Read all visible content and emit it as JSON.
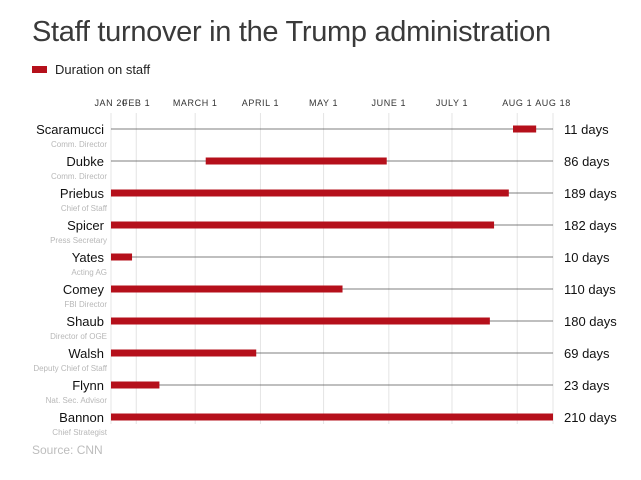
{
  "title": "Staff turnover in the Trump administration",
  "legend": {
    "label": "Duration on staff",
    "color": "#b5101b"
  },
  "source": "Source: CNN",
  "colors": {
    "bar": "#b5101b",
    "row_line": "#555555",
    "grid": "#e4e4e4"
  },
  "chart_data": {
    "type": "bar",
    "orientation": "horizontal",
    "title": "Staff turnover in the Trump administration",
    "xlabel": "",
    "ylabel": "",
    "x_axis": {
      "ticks": [
        {
          "label": "JAN 20",
          "day": 0
        },
        {
          "label": "FEB 1",
          "day": 12
        },
        {
          "label": "MARCH 1",
          "day": 40
        },
        {
          "label": "APRIL 1",
          "day": 71
        },
        {
          "label": "MAY 1",
          "day": 101
        },
        {
          "label": "JUNE 1",
          "day": 132
        },
        {
          "label": "JULY 1",
          "day": 162
        },
        {
          "label": "AUG 1",
          "day": 193
        },
        {
          "label": "AUG 18",
          "day": 210
        }
      ],
      "range": [
        0,
        210
      ],
      "grid": true
    },
    "legend": [
      "Duration on staff"
    ],
    "rows": [
      {
        "name": "Scaramucci",
        "role": "Comm. Director",
        "start": 191,
        "end": 202,
        "days_label": "11 days"
      },
      {
        "name": "Dubke",
        "role": "Comm. Director",
        "start": 45,
        "end": 131,
        "days_label": "86 days"
      },
      {
        "name": "Priebus",
        "role": "Chief of Staff",
        "start": 0,
        "end": 189,
        "days_label": "189 days"
      },
      {
        "name": "Spicer",
        "role": "Press Secretary",
        "start": 0,
        "end": 182,
        "days_label": "182 days"
      },
      {
        "name": "Yates",
        "role": "Acting AG",
        "start": 0,
        "end": 10,
        "days_label": "10 days"
      },
      {
        "name": "Comey",
        "role": "FBI Director",
        "start": 0,
        "end": 110,
        "days_label": "110 days"
      },
      {
        "name": "Shaub",
        "role": "Director of OGE",
        "start": 0,
        "end": 180,
        "days_label": "180 days"
      },
      {
        "name": "Walsh",
        "role": "Deputy Chief of Staff",
        "start": 0,
        "end": 69,
        "days_label": "69 days"
      },
      {
        "name": "Flynn",
        "role": "Nat. Sec. Advisor",
        "start": 0,
        "end": 23,
        "days_label": "23 days"
      },
      {
        "name": "Bannon",
        "role": "Chief Strategist",
        "start": 0,
        "end": 210,
        "days_label": "210 days"
      }
    ]
  }
}
